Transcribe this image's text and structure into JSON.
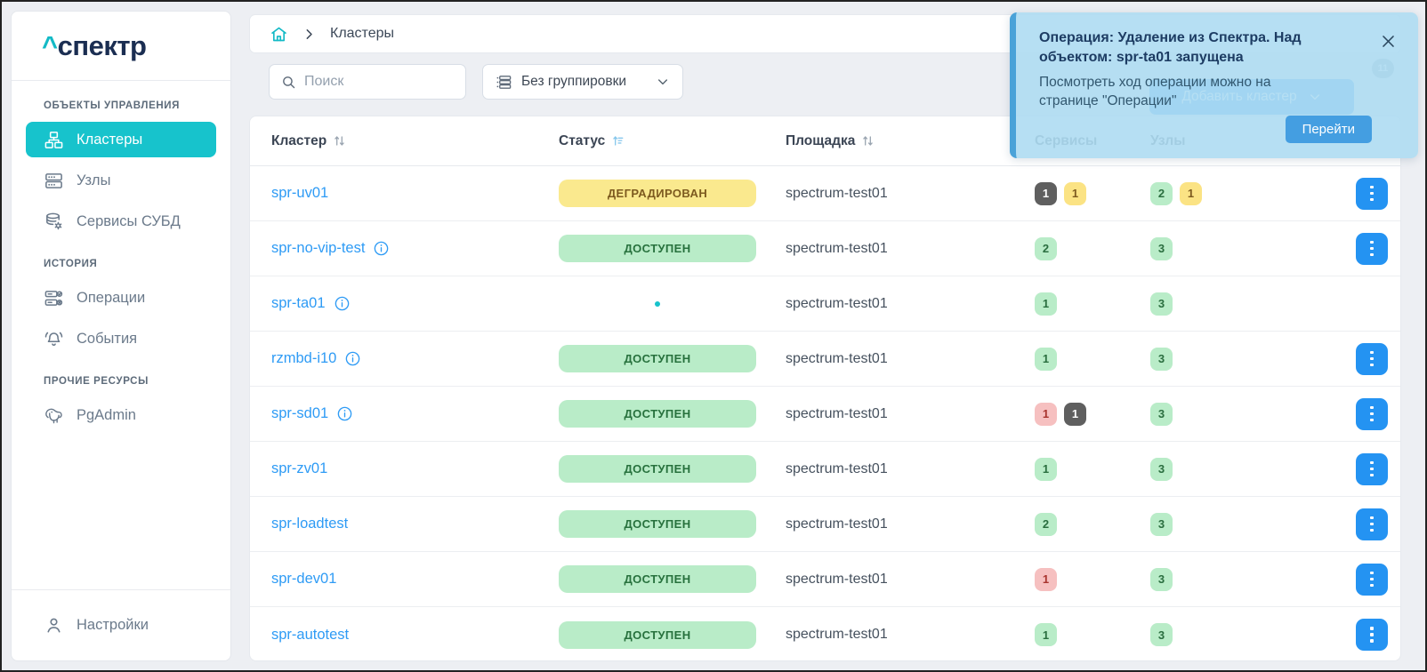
{
  "app": {
    "logo_caret": "^",
    "logo_word": "спектр"
  },
  "sidebar": {
    "sections": [
      {
        "label": "ОБЪЕКТЫ УПРАВЛЕНИЯ",
        "items": [
          {
            "label": "Кластеры",
            "icon": "clusters-icon",
            "active": true
          },
          {
            "label": "Узлы",
            "icon": "nodes-icon",
            "active": false
          },
          {
            "label": "Сервисы СУБД",
            "icon": "db-services-icon",
            "active": false
          }
        ]
      },
      {
        "label": "ИСТОРИЯ",
        "items": [
          {
            "label": "Операции",
            "icon": "operations-icon",
            "active": false
          },
          {
            "label": "События",
            "icon": "events-icon",
            "active": false
          }
        ]
      },
      {
        "label": "ПРОЧИЕ РЕСУРСЫ",
        "items": [
          {
            "label": "PgAdmin",
            "icon": "pgadmin-icon",
            "active": false
          }
        ]
      }
    ],
    "footer": {
      "label": "Настройки",
      "icon": "user-icon"
    }
  },
  "breadcrumb": {
    "home_icon": "home-icon",
    "page": "Кластеры"
  },
  "toolbar": {
    "search_placeholder": "Поиск",
    "group_button": "Без группировки",
    "add_button": "Добавить кластер",
    "notification_count": "11"
  },
  "table": {
    "headers": [
      {
        "label": "Кластер",
        "sort": "both"
      },
      {
        "label": "Статус",
        "sort": "asc-active"
      },
      {
        "label": "Площадка",
        "sort": "both"
      },
      {
        "label": "Сервисы",
        "sort": "none"
      },
      {
        "label": "Узлы",
        "sort": "none"
      }
    ],
    "rows": [
      {
        "cluster": "spr-uv01",
        "info": false,
        "status": {
          "label": "ДЕГРАДИРОВАН",
          "type": "degraded"
        },
        "site": "spectrum-test01",
        "services": [
          {
            "value": "1",
            "type": "dark"
          },
          {
            "value": "1",
            "type": "yellow"
          }
        ],
        "nodes": [
          {
            "value": "2",
            "type": "green"
          },
          {
            "value": "1",
            "type": "yellow"
          }
        ],
        "actions": true
      },
      {
        "cluster": "spr-no-vip-test",
        "info": true,
        "status": {
          "label": "ДОСТУПЕН",
          "type": "available"
        },
        "site": "spectrum-test01",
        "services": [
          {
            "value": "2",
            "type": "green"
          }
        ],
        "nodes": [
          {
            "value": "3",
            "type": "green"
          }
        ],
        "actions": true
      },
      {
        "cluster": "spr-ta01",
        "info": true,
        "status": {
          "label": "",
          "type": "loading"
        },
        "site": "spectrum-test01",
        "services": [
          {
            "value": "1",
            "type": "green"
          }
        ],
        "nodes": [
          {
            "value": "3",
            "type": "green"
          }
        ],
        "actions": false
      },
      {
        "cluster": "rzmbd-i10",
        "info": true,
        "status": {
          "label": "ДОСТУПЕН",
          "type": "available"
        },
        "site": "spectrum-test01",
        "services": [
          {
            "value": "1",
            "type": "green"
          }
        ],
        "nodes": [
          {
            "value": "3",
            "type": "green"
          }
        ],
        "actions": true
      },
      {
        "cluster": "spr-sd01",
        "info": true,
        "status": {
          "label": "ДОСТУПЕН",
          "type": "available"
        },
        "site": "spectrum-test01",
        "services": [
          {
            "value": "1",
            "type": "red"
          },
          {
            "value": "1",
            "type": "dark"
          }
        ],
        "nodes": [
          {
            "value": "3",
            "type": "green"
          }
        ],
        "actions": true
      },
      {
        "cluster": "spr-zv01",
        "info": false,
        "status": {
          "label": "ДОСТУПЕН",
          "type": "available"
        },
        "site": "spectrum-test01",
        "services": [
          {
            "value": "1",
            "type": "green"
          }
        ],
        "nodes": [
          {
            "value": "3",
            "type": "green"
          }
        ],
        "actions": true
      },
      {
        "cluster": "spr-loadtest",
        "info": false,
        "status": {
          "label": "ДОСТУПЕН",
          "type": "available"
        },
        "site": "spectrum-test01",
        "services": [
          {
            "value": "2",
            "type": "green"
          }
        ],
        "nodes": [
          {
            "value": "3",
            "type": "green"
          }
        ],
        "actions": true
      },
      {
        "cluster": "spr-dev01",
        "info": false,
        "status": {
          "label": "ДОСТУПЕН",
          "type": "available"
        },
        "site": "spectrum-test01",
        "services": [
          {
            "value": "1",
            "type": "red"
          }
        ],
        "nodes": [
          {
            "value": "3",
            "type": "green"
          }
        ],
        "actions": true
      },
      {
        "cluster": "spr-autotest",
        "info": false,
        "status": {
          "label": "ДОСТУПЕН",
          "type": "available"
        },
        "site": "spectrum-test01",
        "services": [
          {
            "value": "1",
            "type": "green"
          }
        ],
        "nodes": [
          {
            "value": "3",
            "type": "green"
          }
        ],
        "actions": true
      }
    ]
  },
  "toast": {
    "title": "Операция: Удаление из Спектра. Над объектом: spr-ta01 запущена",
    "body": "Посмотреть ход операции можно на странице \"Операции\"",
    "action": "Перейти",
    "close_icon": "close-icon"
  },
  "colors": {
    "accent_teal": "#17c3cc",
    "link_blue": "#2e9bf5",
    "action_blue": "#2493f2",
    "status_available_bg": "#b9ecc8",
    "status_degraded_bg": "#fae98e",
    "badge_red_bg": "#f6c0c0",
    "badge_dark_bg": "#5f5f5f",
    "toast_bg": "#aedbf2",
    "toast_border": "#4aa2d8",
    "page_bg": "#edeff3"
  }
}
